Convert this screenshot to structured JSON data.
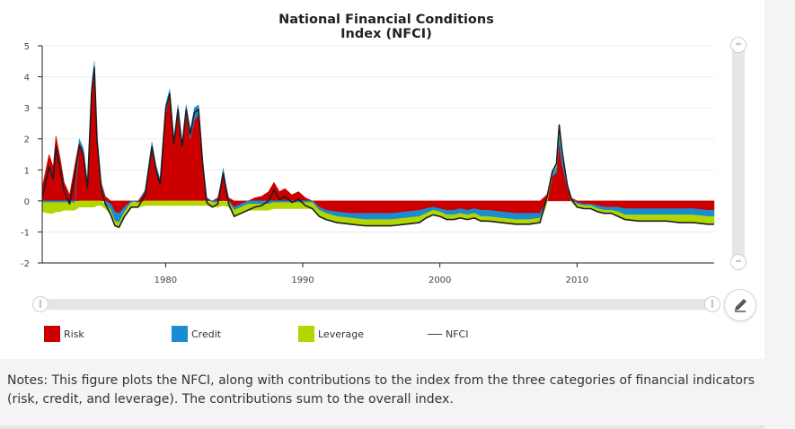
{
  "chart_data": {
    "type": "area",
    "title": "National Financial Conditions Index (NFCI)",
    "title_lines": [
      "National Financial Conditions",
      "Index (NFCI)"
    ],
    "xlabel": "",
    "ylabel": "",
    "xlim": [
      1971.0,
      2020.0
    ],
    "ylim": [
      -2,
      5
    ],
    "x_ticks": [
      1980,
      1990,
      2000,
      2010
    ],
    "y_ticks": [
      -2,
      -1,
      0,
      1,
      2,
      3,
      4,
      5
    ],
    "grid": true,
    "legend_position": "bottom",
    "stacked": true,
    "x": [
      1971.0,
      1971.5,
      1971.8,
      1972.0,
      1972.3,
      1972.6,
      1973.0,
      1973.4,
      1973.7,
      1974.0,
      1974.3,
      1974.6,
      1974.8,
      1975.0,
      1975.3,
      1975.6,
      1976.0,
      1976.3,
      1976.6,
      1977.0,
      1977.5,
      1978.0,
      1978.5,
      1979.0,
      1979.3,
      1979.6,
      1980.0,
      1980.3,
      1980.6,
      1980.9,
      1981.2,
      1981.5,
      1981.8,
      1982.1,
      1982.4,
      1982.7,
      1983.0,
      1983.4,
      1983.8,
      1984.2,
      1984.6,
      1985.0,
      1985.5,
      1986.0,
      1986.5,
      1987.0,
      1987.5,
      1987.9,
      1988.3,
      1988.7,
      1989.2,
      1989.7,
      1990.2,
      1990.7,
      1991.2,
      1991.7,
      1992.5,
      1993.5,
      1994.5,
      1995.5,
      1996.5,
      1997.5,
      1998.5,
      1999.0,
      1999.5,
      2000.0,
      2000.5,
      2001.0,
      2001.5,
      2002.0,
      2002.5,
      2003.0,
      2003.5,
      2004.5,
      2005.5,
      2006.5,
      2007.3,
      2007.8,
      2008.2,
      2008.5,
      2008.7,
      2008.9,
      2009.1,
      2009.3,
      2009.6,
      2010.0,
      2010.5,
      2011.0,
      2011.5,
      2012.0,
      2012.5,
      2013.0,
      2013.5,
      2014.5,
      2015.5,
      2016.5,
      2017.5,
      2018.5,
      2019.5,
      2020.0
    ],
    "series": [
      {
        "name": "Risk",
        "color": "#cc0000",
        "values": [
          0.45,
          1.5,
          1.1,
          2.1,
          1.4,
          0.6,
          0.2,
          1.2,
          1.9,
          1.6,
          0.5,
          3.4,
          4.3,
          2.0,
          0.6,
          0.15,
          -0.1,
          -0.35,
          -0.4,
          -0.2,
          0.0,
          -0.05,
          0.3,
          1.7,
          1.0,
          0.6,
          2.8,
          3.4,
          1.8,
          2.8,
          1.7,
          2.8,
          2.0,
          2.6,
          2.8,
          1.2,
          0.1,
          0.0,
          0.1,
          0.9,
          0.1,
          -0.2,
          -0.1,
          0.0,
          0.1,
          0.15,
          0.3,
          0.6,
          0.3,
          0.4,
          0.2,
          0.3,
          0.1,
          0.0,
          -0.2,
          -0.3,
          -0.35,
          -0.4,
          -0.4,
          -0.4,
          -0.4,
          -0.35,
          -0.3,
          -0.25,
          -0.2,
          -0.25,
          -0.3,
          -0.3,
          -0.25,
          -0.3,
          -0.25,
          -0.3,
          -0.3,
          -0.35,
          -0.4,
          -0.4,
          -0.4,
          0.2,
          0.8,
          0.9,
          1.9,
          1.2,
          0.8,
          0.4,
          0.1,
          -0.05,
          -0.1,
          -0.1,
          -0.15,
          -0.2,
          -0.2,
          -0.2,
          -0.25,
          -0.25,
          -0.25,
          -0.25,
          -0.25,
          -0.25,
          -0.3,
          -0.3
        ]
      },
      {
        "name": "Credit",
        "color": "#1a8cd0",
        "values": [
          -0.05,
          -0.05,
          -0.05,
          -0.05,
          -0.05,
          -0.05,
          -0.05,
          -0.05,
          0.1,
          0.1,
          0.1,
          0.3,
          0.2,
          0.1,
          0.0,
          -0.1,
          -0.2,
          -0.3,
          -0.3,
          -0.15,
          -0.05,
          0.0,
          0.05,
          0.2,
          0.15,
          0.1,
          0.3,
          0.2,
          0.2,
          0.3,
          0.2,
          0.3,
          0.3,
          0.4,
          0.3,
          0.15,
          0.0,
          -0.05,
          -0.05,
          0.15,
          -0.05,
          -0.1,
          -0.1,
          -0.1,
          -0.1,
          -0.1,
          -0.1,
          -0.05,
          -0.05,
          -0.05,
          -0.05,
          -0.05,
          -0.05,
          -0.05,
          -0.1,
          -0.1,
          -0.15,
          -0.15,
          -0.2,
          -0.2,
          -0.2,
          -0.2,
          -0.2,
          -0.15,
          -0.1,
          -0.1,
          -0.15,
          -0.15,
          -0.15,
          -0.15,
          -0.15,
          -0.2,
          -0.2,
          -0.2,
          -0.2,
          -0.2,
          -0.15,
          -0.05,
          0.1,
          0.2,
          0.3,
          0.3,
          0.2,
          0.1,
          0.0,
          -0.05,
          -0.05,
          -0.05,
          -0.1,
          -0.1,
          -0.1,
          -0.15,
          -0.2,
          -0.2,
          -0.2,
          -0.2,
          -0.2,
          -0.2,
          -0.2,
          -0.2
        ]
      },
      {
        "name": "Leverage",
        "color": "#b2d600",
        "values": [
          -0.3,
          -0.35,
          -0.35,
          -0.3,
          -0.3,
          -0.25,
          -0.25,
          -0.25,
          -0.2,
          -0.2,
          -0.2,
          -0.2,
          -0.2,
          -0.15,
          -0.15,
          -0.15,
          -0.15,
          -0.15,
          -0.15,
          -0.15,
          -0.15,
          -0.15,
          -0.15,
          -0.15,
          -0.15,
          -0.15,
          -0.15,
          -0.15,
          -0.15,
          -0.15,
          -0.15,
          -0.15,
          -0.15,
          -0.15,
          -0.15,
          -0.15,
          -0.15,
          -0.15,
          -0.15,
          -0.15,
          -0.15,
          -0.2,
          -0.2,
          -0.2,
          -0.2,
          -0.2,
          -0.2,
          -0.2,
          -0.2,
          -0.2,
          -0.2,
          -0.2,
          -0.2,
          -0.2,
          -0.2,
          -0.2,
          -0.2,
          -0.2,
          -0.2,
          -0.2,
          -0.2,
          -0.2,
          -0.2,
          -0.15,
          -0.15,
          -0.15,
          -0.15,
          -0.15,
          -0.15,
          -0.15,
          -0.15,
          -0.15,
          -0.15,
          -0.15,
          -0.15,
          -0.15,
          -0.15,
          -0.05,
          0.05,
          0.1,
          0.25,
          0.15,
          0.05,
          0.0,
          -0.05,
          -0.1,
          -0.1,
          -0.1,
          -0.1,
          -0.1,
          -0.1,
          -0.15,
          -0.15,
          -0.2,
          -0.2,
          -0.2,
          -0.25,
          -0.25,
          -0.25,
          -0.25
        ]
      },
      {
        "name": "NFCI",
        "color": "#1e1e1e",
        "type": "line",
        "values": [
          0.1,
          1.1,
          0.7,
          1.75,
          1.05,
          0.3,
          -0.1,
          0.9,
          1.8,
          1.5,
          0.4,
          3.5,
          4.3,
          1.95,
          0.45,
          -0.1,
          -0.45,
          -0.8,
          -0.85,
          -0.5,
          -0.2,
          -0.2,
          0.2,
          1.75,
          1.0,
          0.55,
          2.95,
          3.45,
          1.85,
          2.95,
          1.75,
          2.95,
          2.15,
          2.85,
          2.95,
          1.2,
          -0.05,
          -0.2,
          -0.1,
          0.9,
          -0.1,
          -0.5,
          -0.4,
          -0.3,
          -0.2,
          -0.15,
          0.0,
          0.35,
          0.05,
          0.15,
          -0.05,
          0.05,
          -0.15,
          -0.25,
          -0.5,
          -0.6,
          -0.7,
          -0.75,
          -0.8,
          -0.8,
          -0.8,
          -0.75,
          -0.7,
          -0.55,
          -0.45,
          -0.5,
          -0.6,
          -0.6,
          -0.55,
          -0.6,
          -0.55,
          -0.65,
          -0.65,
          -0.7,
          -0.75,
          -0.75,
          -0.7,
          0.1,
          0.95,
          1.2,
          2.45,
          1.65,
          1.05,
          0.5,
          0.05,
          -0.2,
          -0.25,
          -0.25,
          -0.35,
          -0.4,
          -0.4,
          -0.5,
          -0.6,
          -0.65,
          -0.65,
          -0.65,
          -0.7,
          -0.7,
          -0.75,
          -0.75
        ]
      }
    ]
  },
  "legend": {
    "risk_label": "Risk",
    "credit_label": "Credit",
    "leverage_label": "Leverage",
    "nfci_label": "NFCI"
  },
  "notes": {
    "text": "Notes: This figure plots the NFCI, along with contributions to the index from the three categories of financial indicators (risk, credit, and leverage). The contributions sum to the overall index."
  },
  "controls": {
    "icons": {
      "edit": "pencil-icon",
      "grip": "grip-icon"
    }
  }
}
